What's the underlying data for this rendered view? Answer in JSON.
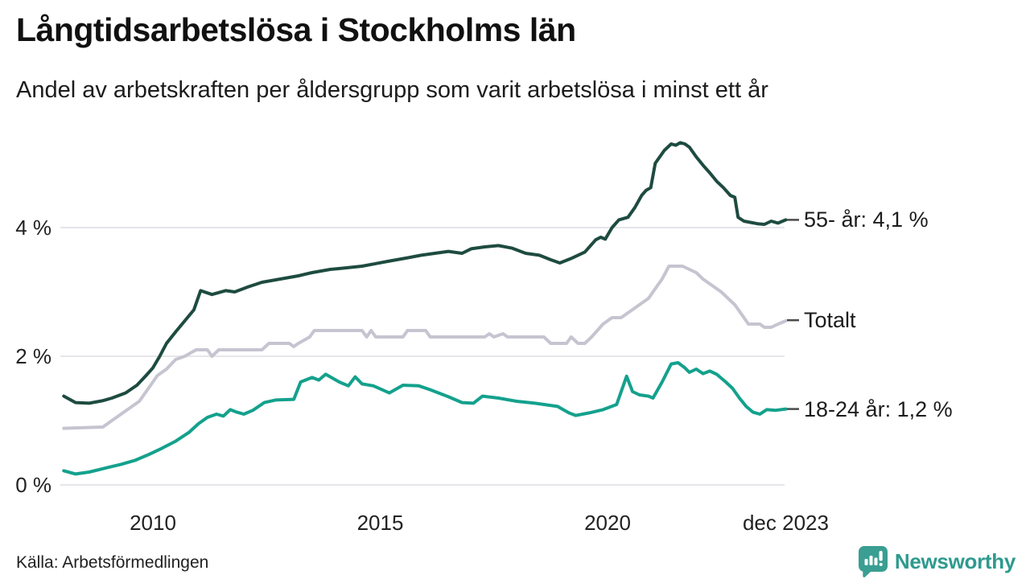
{
  "header": {
    "title": "Långtidsarbetslösa i Stockholms län",
    "subtitle": "Andel av arbetskraften per åldersgrupp som varit arbetslösa i minst ett år"
  },
  "footer": {
    "source": "Källa: Arbetsförmedlingen",
    "brand": "Newsworthy"
  },
  "colors": {
    "series_55": "#1e4b40",
    "series_total": "#c7c4d1",
    "series_1824": "#14a18d",
    "gridline": "#e6e5ea",
    "label_tick": "#4a4a4a",
    "brand_teal": "#2e9a8e",
    "text": "#1c1c1c"
  },
  "chart_data": {
    "type": "line",
    "title": "Långtidsarbetslösa i Stockholms län",
    "xlabel": "",
    "ylabel": "",
    "x_unit": "decimal_year",
    "x_range": [
      2008.04,
      2023.92
    ],
    "ylim": [
      0,
      5.6
    ],
    "grid": true,
    "legend_position": "right-end-labels",
    "yticks": [
      {
        "label": "0 %",
        "value": 0
      },
      {
        "label": "2 %",
        "value": 2
      },
      {
        "label": "4 %",
        "value": 4
      }
    ],
    "xticks": [
      {
        "label": "2010",
        "value": 2010
      },
      {
        "label": "2015",
        "value": 2015
      },
      {
        "label": "2020",
        "value": 2020
      },
      {
        "label": "dec 2023",
        "value": 2023.92
      }
    ],
    "series": [
      {
        "name": "55- år",
        "label": "55- år: 4,1 %",
        "end_value_label": "4,1 %",
        "color": "#1e4b40",
        "label_value": 4.12,
        "points": [
          [
            2008.04,
            1.38
          ],
          [
            2008.3,
            1.28
          ],
          [
            2008.6,
            1.27
          ],
          [
            2008.9,
            1.31
          ],
          [
            2009.1,
            1.35
          ],
          [
            2009.4,
            1.43
          ],
          [
            2009.65,
            1.55
          ],
          [
            2009.85,
            1.7
          ],
          [
            2010.0,
            1.82
          ],
          [
            2010.15,
            2.0
          ],
          [
            2010.3,
            2.2
          ],
          [
            2010.5,
            2.38
          ],
          [
            2010.7,
            2.55
          ],
          [
            2010.9,
            2.72
          ],
          [
            2011.05,
            3.02
          ],
          [
            2011.3,
            2.96
          ],
          [
            2011.6,
            3.02
          ],
          [
            2011.8,
            3.0
          ],
          [
            2012.1,
            3.08
          ],
          [
            2012.4,
            3.15
          ],
          [
            2012.8,
            3.2
          ],
          [
            2013.2,
            3.25
          ],
          [
            2013.5,
            3.3
          ],
          [
            2013.9,
            3.35
          ],
          [
            2014.2,
            3.37
          ],
          [
            2014.6,
            3.4
          ],
          [
            2014.9,
            3.44
          ],
          [
            2015.2,
            3.48
          ],
          [
            2015.6,
            3.53
          ],
          [
            2015.9,
            3.57
          ],
          [
            2016.2,
            3.6
          ],
          [
            2016.5,
            3.63
          ],
          [
            2016.8,
            3.6
          ],
          [
            2017.0,
            3.67
          ],
          [
            2017.3,
            3.7
          ],
          [
            2017.6,
            3.72
          ],
          [
            2017.9,
            3.68
          ],
          [
            2018.2,
            3.6
          ],
          [
            2018.5,
            3.57
          ],
          [
            2018.75,
            3.5
          ],
          [
            2018.95,
            3.45
          ],
          [
            2019.2,
            3.52
          ],
          [
            2019.5,
            3.62
          ],
          [
            2019.74,
            3.81
          ],
          [
            2019.85,
            3.85
          ],
          [
            2019.95,
            3.82
          ],
          [
            2020.1,
            4.0
          ],
          [
            2020.25,
            4.12
          ],
          [
            2020.45,
            4.16
          ],
          [
            2020.6,
            4.31
          ],
          [
            2020.75,
            4.5
          ],
          [
            2020.85,
            4.58
          ],
          [
            2020.95,
            4.62
          ],
          [
            2021.05,
            5.0
          ],
          [
            2021.25,
            5.2
          ],
          [
            2021.4,
            5.3
          ],
          [
            2021.5,
            5.28
          ],
          [
            2021.6,
            5.32
          ],
          [
            2021.7,
            5.3
          ],
          [
            2021.8,
            5.25
          ],
          [
            2021.95,
            5.1
          ],
          [
            2022.1,
            4.97
          ],
          [
            2022.25,
            4.85
          ],
          [
            2022.4,
            4.72
          ],
          [
            2022.55,
            4.62
          ],
          [
            2022.7,
            4.5
          ],
          [
            2022.8,
            4.47
          ],
          [
            2022.87,
            4.16
          ],
          [
            2023.0,
            4.1
          ],
          [
            2023.15,
            4.08
          ],
          [
            2023.3,
            4.06
          ],
          [
            2023.45,
            4.05
          ],
          [
            2023.6,
            4.1
          ],
          [
            2023.75,
            4.07
          ],
          [
            2023.92,
            4.12
          ]
        ]
      },
      {
        "name": "Totalt",
        "label": "Totalt",
        "end_value_label": "",
        "color": "#c7c4d1",
        "label_value": 2.56,
        "points": [
          [
            2008.04,
            0.88
          ],
          [
            2008.9,
            0.9
          ],
          [
            2009.1,
            1.0
          ],
          [
            2009.3,
            1.1
          ],
          [
            2009.5,
            1.2
          ],
          [
            2009.7,
            1.3
          ],
          [
            2009.9,
            1.5
          ],
          [
            2010.1,
            1.7
          ],
          [
            2010.3,
            1.8
          ],
          [
            2010.5,
            1.95
          ],
          [
            2010.7,
            2.0
          ],
          [
            2010.95,
            2.1
          ],
          [
            2011.2,
            2.1
          ],
          [
            2011.3,
            2.0
          ],
          [
            2011.45,
            2.1
          ],
          [
            2012.4,
            2.1
          ],
          [
            2012.55,
            2.2
          ],
          [
            2013.0,
            2.2
          ],
          [
            2013.1,
            2.15
          ],
          [
            2013.2,
            2.2
          ],
          [
            2013.45,
            2.3
          ],
          [
            2013.55,
            2.4
          ],
          [
            2014.6,
            2.4
          ],
          [
            2014.7,
            2.3
          ],
          [
            2014.8,
            2.4
          ],
          [
            2014.9,
            2.3
          ],
          [
            2015.5,
            2.3
          ],
          [
            2015.6,
            2.4
          ],
          [
            2016.0,
            2.4
          ],
          [
            2016.1,
            2.3
          ],
          [
            2017.3,
            2.3
          ],
          [
            2017.4,
            2.35
          ],
          [
            2017.5,
            2.3
          ],
          [
            2017.7,
            2.35
          ],
          [
            2017.8,
            2.3
          ],
          [
            2018.6,
            2.3
          ],
          [
            2018.75,
            2.2
          ],
          [
            2019.1,
            2.2
          ],
          [
            2019.2,
            2.3
          ],
          [
            2019.35,
            2.2
          ],
          [
            2019.5,
            2.2
          ],
          [
            2019.65,
            2.3
          ],
          [
            2019.9,
            2.5
          ],
          [
            2020.1,
            2.6
          ],
          [
            2020.3,
            2.6
          ],
          [
            2020.5,
            2.7
          ],
          [
            2020.7,
            2.8
          ],
          [
            2020.9,
            2.9
          ],
          [
            2021.0,
            3.0
          ],
          [
            2021.1,
            3.1
          ],
          [
            2021.2,
            3.2
          ],
          [
            2021.35,
            3.4
          ],
          [
            2021.65,
            3.4
          ],
          [
            2021.8,
            3.35
          ],
          [
            2021.95,
            3.3
          ],
          [
            2022.1,
            3.2
          ],
          [
            2022.3,
            3.1
          ],
          [
            2022.5,
            3.0
          ],
          [
            2022.65,
            2.9
          ],
          [
            2022.8,
            2.8
          ],
          [
            2022.9,
            2.7
          ],
          [
            2023.0,
            2.6
          ],
          [
            2023.1,
            2.5
          ],
          [
            2023.35,
            2.5
          ],
          [
            2023.45,
            2.45
          ],
          [
            2023.6,
            2.45
          ],
          [
            2023.75,
            2.5
          ],
          [
            2023.92,
            2.55
          ]
        ]
      },
      {
        "name": "18-24 år",
        "label": "18-24 år: 1,2 %",
        "end_value_label": "1,2 %",
        "color": "#14a18d",
        "label_value": 1.18,
        "points": [
          [
            2008.04,
            0.22
          ],
          [
            2008.3,
            0.17
          ],
          [
            2008.6,
            0.2
          ],
          [
            2009.0,
            0.27
          ],
          [
            2009.3,
            0.32
          ],
          [
            2009.6,
            0.38
          ],
          [
            2009.9,
            0.47
          ],
          [
            2010.2,
            0.57
          ],
          [
            2010.5,
            0.68
          ],
          [
            2010.8,
            0.82
          ],
          [
            2011.0,
            0.95
          ],
          [
            2011.2,
            1.05
          ],
          [
            2011.4,
            1.1
          ],
          [
            2011.55,
            1.07
          ],
          [
            2011.7,
            1.17
          ],
          [
            2011.85,
            1.13
          ],
          [
            2012.0,
            1.1
          ],
          [
            2012.2,
            1.16
          ],
          [
            2012.45,
            1.28
          ],
          [
            2012.7,
            1.32
          ],
          [
            2013.1,
            1.33
          ],
          [
            2013.25,
            1.6
          ],
          [
            2013.5,
            1.67
          ],
          [
            2013.65,
            1.63
          ],
          [
            2013.8,
            1.72
          ],
          [
            2014.1,
            1.6
          ],
          [
            2014.3,
            1.54
          ],
          [
            2014.45,
            1.68
          ],
          [
            2014.6,
            1.57
          ],
          [
            2014.85,
            1.54
          ],
          [
            2015.2,
            1.43
          ],
          [
            2015.5,
            1.55
          ],
          [
            2015.85,
            1.54
          ],
          [
            2016.1,
            1.48
          ],
          [
            2016.5,
            1.37
          ],
          [
            2016.8,
            1.28
          ],
          [
            2017.05,
            1.27
          ],
          [
            2017.25,
            1.38
          ],
          [
            2017.6,
            1.35
          ],
          [
            2018.0,
            1.3
          ],
          [
            2018.4,
            1.27
          ],
          [
            2018.9,
            1.22
          ],
          [
            2019.15,
            1.12
          ],
          [
            2019.3,
            1.08
          ],
          [
            2019.6,
            1.12
          ],
          [
            2019.9,
            1.17
          ],
          [
            2020.2,
            1.25
          ],
          [
            2020.42,
            1.69
          ],
          [
            2020.55,
            1.45
          ],
          [
            2020.7,
            1.4
          ],
          [
            2020.9,
            1.38
          ],
          [
            2021.0,
            1.35
          ],
          [
            2021.2,
            1.6
          ],
          [
            2021.4,
            1.88
          ],
          [
            2021.55,
            1.9
          ],
          [
            2021.7,
            1.82
          ],
          [
            2021.8,
            1.75
          ],
          [
            2021.95,
            1.8
          ],
          [
            2022.1,
            1.73
          ],
          [
            2022.25,
            1.77
          ],
          [
            2022.4,
            1.72
          ],
          [
            2022.6,
            1.6
          ],
          [
            2022.75,
            1.5
          ],
          [
            2022.9,
            1.35
          ],
          [
            2023.05,
            1.22
          ],
          [
            2023.2,
            1.13
          ],
          [
            2023.35,
            1.1
          ],
          [
            2023.5,
            1.17
          ],
          [
            2023.7,
            1.16
          ],
          [
            2023.92,
            1.18
          ]
        ]
      }
    ]
  }
}
